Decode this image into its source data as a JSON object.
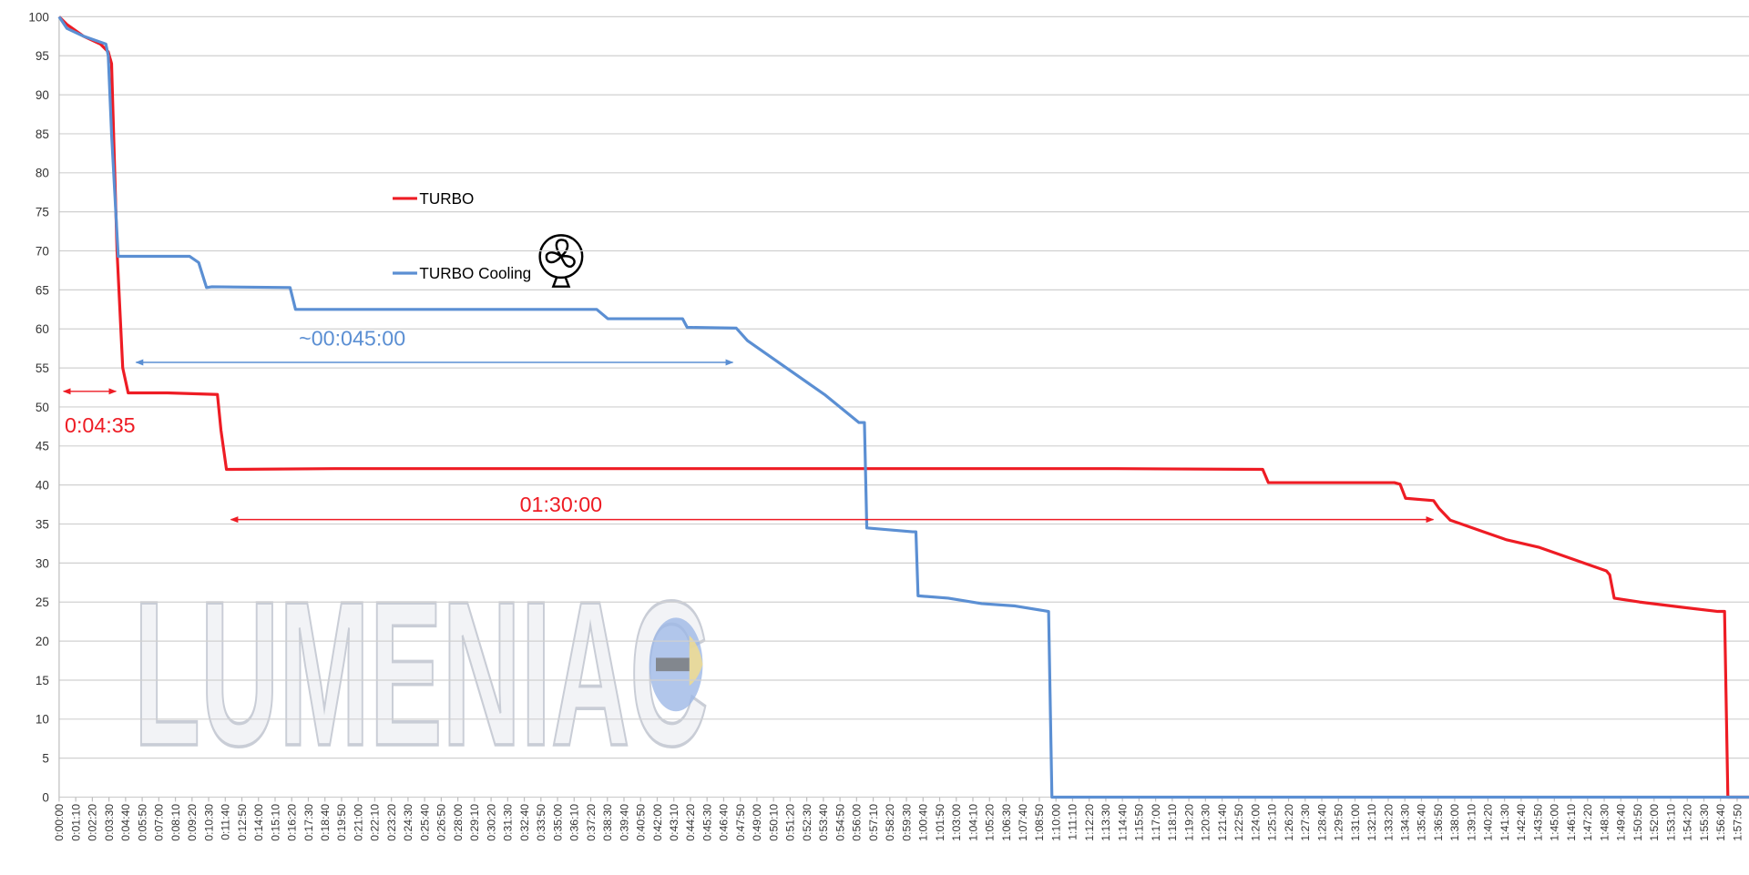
{
  "chart_data": {
    "type": "line",
    "series": [
      {
        "name": "TURBO",
        "color": "#ee1c24",
        "x": [
          0,
          33,
          103,
          174,
          207,
          221,
          244,
          268,
          291,
          456,
          667,
          682,
          705,
          1161,
          4451,
          5071,
          5095,
          5626,
          5650,
          5673,
          5791,
          5814,
          5861,
          5908,
          6002,
          6096,
          6237,
          6378,
          6519,
          6533,
          6552,
          6660,
          6848,
          6989,
          7017,
          7031,
          7120
        ],
        "values": [
          100,
          99,
          97.5,
          96.5,
          95.5,
          94,
          70,
          55,
          51.8,
          51.8,
          51.6,
          47,
          42,
          42.1,
          42.1,
          42,
          40.3,
          40.3,
          40.1,
          38.3,
          38,
          37,
          35.5,
          35,
          34,
          33,
          32,
          30.5,
          29,
          28.5,
          25.5,
          25,
          24.3,
          23.8,
          23.8,
          0,
          0
        ]
      },
      {
        "name": "TURBO Cooling",
        "color": "#5b8fd3",
        "x": [
          0,
          33,
          103,
          197,
          207,
          221,
          249,
          550,
          588,
          621,
          644,
          973,
          996,
          2265,
          2312,
          2627,
          2646,
          2853,
          2900,
          3041,
          3229,
          3370,
          3393,
          3403,
          3596,
          3610,
          3619,
          3746,
          3887,
          4028,
          4169,
          4183,
          7120
        ],
        "values": [
          100,
          98.5,
          97.5,
          96.5,
          95,
          85,
          69.3,
          69.3,
          68.5,
          65.3,
          65.4,
          65.3,
          62.5,
          62.5,
          61.3,
          61.3,
          60.2,
          60.1,
          58.5,
          55.5,
          51.5,
          48,
          48,
          34.5,
          34,
          34,
          25.8,
          25.5,
          24.8,
          24.5,
          23.8,
          0,
          0
        ]
      }
    ],
    "annotations": [
      "~00:045:00",
      "0:04:35",
      "01:30:00"
    ],
    "watermark": "LUMENIAC",
    "xlim": [
      0,
      7120
    ],
    "ylim": [
      0,
      100
    ],
    "yticks": [
      0,
      5,
      10,
      15,
      20,
      25,
      30,
      35,
      40,
      45,
      50,
      55,
      60,
      65,
      70,
      75,
      80,
      85,
      90,
      95,
      100
    ],
    "xticks": [
      {
        "value": 0,
        "label": "0:00:00"
      },
      {
        "value": 70,
        "label": "0:01:10"
      },
      {
        "value": 140,
        "label": "0:02:20"
      },
      {
        "value": 210,
        "label": "0:03:30"
      },
      {
        "value": 280,
        "label": "0:04:40"
      },
      {
        "value": 350,
        "label": "0:05:50"
      },
      {
        "value": 420,
        "label": "0:07:00"
      },
      {
        "value": 490,
        "label": "0:08:10"
      },
      {
        "value": 560,
        "label": "0:09:20"
      },
      {
        "value": 630,
        "label": "0:10:30"
      },
      {
        "value": 700,
        "label": "0:11:40"
      },
      {
        "value": 770,
        "label": "0:12:50"
      },
      {
        "value": 840,
        "label": "0:14:00"
      },
      {
        "value": 910,
        "label": "0:15:10"
      },
      {
        "value": 980,
        "label": "0:16:20"
      },
      {
        "value": 1050,
        "label": "0:17:30"
      },
      {
        "value": 1120,
        "label": "0:18:40"
      },
      {
        "value": 1190,
        "label": "0:19:50"
      },
      {
        "value": 1260,
        "label": "0:21:00"
      },
      {
        "value": 1330,
        "label": "0:22:10"
      },
      {
        "value": 1400,
        "label": "0:23:20"
      },
      {
        "value": 1470,
        "label": "0:24:30"
      },
      {
        "value": 1540,
        "label": "0:25:40"
      },
      {
        "value": 1610,
        "label": "0:26:50"
      },
      {
        "value": 1680,
        "label": "0:28:00"
      },
      {
        "value": 1750,
        "label": "0:29:10"
      },
      {
        "value": 1820,
        "label": "0:30:20"
      },
      {
        "value": 1890,
        "label": "0:31:30"
      },
      {
        "value": 1960,
        "label": "0:32:40"
      },
      {
        "value": 2030,
        "label": "0:33:50"
      },
      {
        "value": 2100,
        "label": "0:35:00"
      },
      {
        "value": 2170,
        "label": "0:36:10"
      },
      {
        "value": 2240,
        "label": "0:37:20"
      },
      {
        "value": 2310,
        "label": "0:38:30"
      },
      {
        "value": 2380,
        "label": "0:39:40"
      },
      {
        "value": 2450,
        "label": "0:40:50"
      },
      {
        "value": 2520,
        "label": "0:42:00"
      },
      {
        "value": 2590,
        "label": "0:43:10"
      },
      {
        "value": 2660,
        "label": "0:44:20"
      },
      {
        "value": 2730,
        "label": "0:45:30"
      },
      {
        "value": 2800,
        "label": "0:46:40"
      },
      {
        "value": 2870,
        "label": "0:47:50"
      },
      {
        "value": 2940,
        "label": "0:49:00"
      },
      {
        "value": 3010,
        "label": "0:50:10"
      },
      {
        "value": 3080,
        "label": "0:51:20"
      },
      {
        "value": 3150,
        "label": "0:52:30"
      },
      {
        "value": 3220,
        "label": "0:53:40"
      },
      {
        "value": 3290,
        "label": "0:54:50"
      },
      {
        "value": 3360,
        "label": "0:56:00"
      },
      {
        "value": 3430,
        "label": "0:57:10"
      },
      {
        "value": 3500,
        "label": "0:58:20"
      },
      {
        "value": 3570,
        "label": "0:59:30"
      },
      {
        "value": 3640,
        "label": "1:00:40"
      },
      {
        "value": 3710,
        "label": "1:01:50"
      },
      {
        "value": 3780,
        "label": "1:03:00"
      },
      {
        "value": 3850,
        "label": "1:04:10"
      },
      {
        "value": 3920,
        "label": "1:05:20"
      },
      {
        "value": 3990,
        "label": "1:06:30"
      },
      {
        "value": 4060,
        "label": "1:07:40"
      },
      {
        "value": 4130,
        "label": "1:08:50"
      },
      {
        "value": 4200,
        "label": "1:10:00"
      },
      {
        "value": 4270,
        "label": "1:11:10"
      },
      {
        "value": 4340,
        "label": "1:12:20"
      },
      {
        "value": 4410,
        "label": "1:13:30"
      },
      {
        "value": 4480,
        "label": "1:14:40"
      },
      {
        "value": 4550,
        "label": "1:15:50"
      },
      {
        "value": 4620,
        "label": "1:17:00"
      },
      {
        "value": 4690,
        "label": "1:18:10"
      },
      {
        "value": 4760,
        "label": "1:19:20"
      },
      {
        "value": 4830,
        "label": "1:20:30"
      },
      {
        "value": 4900,
        "label": "1:21:40"
      },
      {
        "value": 4970,
        "label": "1:22:50"
      },
      {
        "value": 5040,
        "label": "1:24:00"
      },
      {
        "value": 5110,
        "label": "1:25:10"
      },
      {
        "value": 5180,
        "label": "1:26:20"
      },
      {
        "value": 5250,
        "label": "1:27:30"
      },
      {
        "value": 5320,
        "label": "1:28:40"
      },
      {
        "value": 5390,
        "label": "1:29:50"
      },
      {
        "value": 5460,
        "label": "1:31:00"
      },
      {
        "value": 5530,
        "label": "1:32:10"
      },
      {
        "value": 5600,
        "label": "1:33:20"
      },
      {
        "value": 5670,
        "label": "1:34:30"
      },
      {
        "value": 5740,
        "label": "1:35:40"
      },
      {
        "value": 5810,
        "label": "1:36:50"
      },
      {
        "value": 5880,
        "label": "1:38:00"
      },
      {
        "value": 5950,
        "label": "1:39:10"
      },
      {
        "value": 6020,
        "label": "1:40:20"
      },
      {
        "value": 6090,
        "label": "1:41:30"
      },
      {
        "value": 6160,
        "label": "1:42:40"
      },
      {
        "value": 6230,
        "label": "1:43:50"
      },
      {
        "value": 6300,
        "label": "1:45:00"
      },
      {
        "value": 6370,
        "label": "1:46:10"
      },
      {
        "value": 6440,
        "label": "1:47:20"
      },
      {
        "value": 6510,
        "label": "1:48:30"
      },
      {
        "value": 6580,
        "label": "1:49:40"
      },
      {
        "value": 6650,
        "label": "1:50:50"
      },
      {
        "value": 6720,
        "label": "1:52:00"
      },
      {
        "value": 6790,
        "label": "1:53:10"
      },
      {
        "value": 6860,
        "label": "1:54:20"
      },
      {
        "value": 6930,
        "label": "1:55:30"
      },
      {
        "value": 7000,
        "label": "1:56:40"
      },
      {
        "value": 7070,
        "label": "1:57:50"
      }
    ],
    "grid": true
  }
}
